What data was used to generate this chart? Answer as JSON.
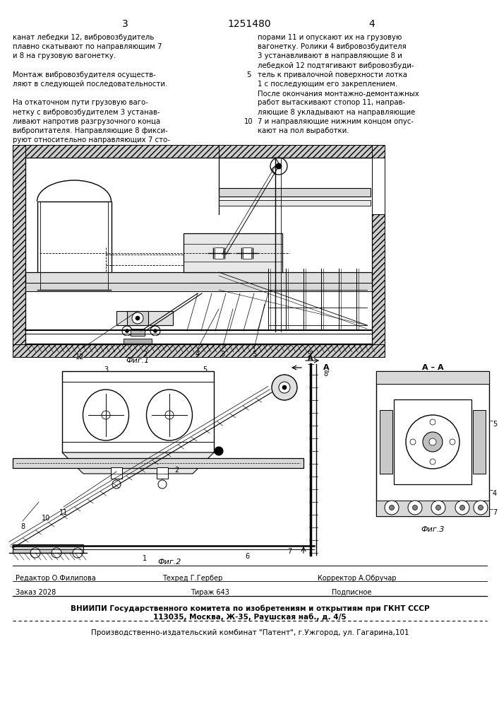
{
  "bg_color": "#ffffff",
  "page_width": 7.07,
  "page_height": 10.0,
  "header": {
    "left_num": "3",
    "center_num": "1251480",
    "right_num": "4"
  },
  "left_column_text": [
    "канат лебедки 12, вибровозбудитель",
    "плавно скатывают по направляющим 7",
    "и 8 на грузовую вагонетку.",
    "",
    "Монтаж вибровозбудителя осуществ-",
    "ляют в следующей последовательности.",
    "",
    "На откаточном пути грузовую ваго-",
    "нетку с вибровозбудителем 3 устанав-",
    "ливают напротив разгрузочного конца",
    "вибропитателя. Направляющие 8 фикси-",
    "руют относительно направляющих 7 сто-"
  ],
  "right_column_text": [
    "порами 11 и опускают их на грузовую",
    "вагонетку. Ролики 4 вибровозбудителя",
    "3 устанавливают в направляющие 8 и",
    "лебедкой 12 подтягивают вибровозбуди-",
    "тель к привалочной поверхности лотка",
    "1 с последующим его закреплением.",
    "После окончания монтажно-демонтажных",
    "работ вытаскивают стопор 11, направ-",
    "ляющие 8 укладывают на направляющие",
    "7 и направляющие нижним концом опус-",
    "кают на пол выработки."
  ],
  "footer_editor": "Редактор О.Филипова   Техред Г.Гербер        Корректор А.Обручар",
  "footer_order": "Заказ 2028",
  "footer_tirage": "Тираж 643",
  "footer_subscription": "Подписное",
  "footer_vniiipi_line1": "ВНИИПИ Государственного комитета по изобретениям и открытиям при ГКНТ СССР",
  "footer_vniiipi_line2": "113035, Москва, Ж-35, Раушская наб., д. 4/5",
  "footer_production": "Производственно-издательский комбинат \"Патент\", г.Ужгород, ул. Гагарина,101"
}
